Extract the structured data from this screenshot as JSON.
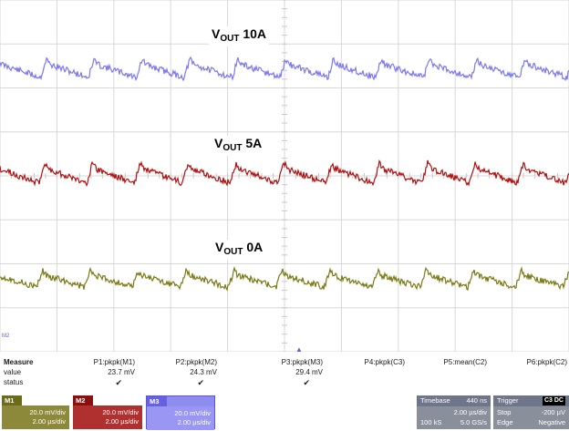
{
  "traces": {
    "top": {
      "label_main": "V",
      "label_sub": "OUT",
      "label_tail": " 10A",
      "color": "#7b78f0"
    },
    "middle": {
      "label_main": "V",
      "label_sub": "OUT",
      "label_tail": " 5A",
      "color": "#b01010"
    },
    "bottom": {
      "label_main": "V",
      "label_sub": "OUT",
      "label_tail": " 0A",
      "color": "#7a7a14"
    }
  },
  "markers": {
    "m2": "M2",
    "trigger": "▲"
  },
  "measure": {
    "title": "Measure",
    "row_value": "value",
    "row_status": "status",
    "params": [
      {
        "name": "P1:pkpk(M1)",
        "value": "23.7 mV",
        "status": "✔"
      },
      {
        "name": "P2:pkpk(M2)",
        "value": "24.3 mV",
        "status": "✔"
      },
      {
        "name": "P3:pkpk(M3)",
        "value": "29.4 mV",
        "status": "✔"
      },
      {
        "name": "P4:pkpk(C3)",
        "value": "",
        "status": ""
      },
      {
        "name": "P5:mean(C2)",
        "value": "",
        "status": ""
      },
      {
        "name": "P6:pkpk(C2)",
        "value": "",
        "status": ""
      }
    ]
  },
  "channels": [
    {
      "tag": "M1",
      "vdiv": "20.0 mV/div",
      "tdiv": "2.00 µs/div"
    },
    {
      "tag": "M2",
      "vdiv": "20.0 mV/div",
      "tdiv": "2.00 µs/div"
    },
    {
      "tag": "M3",
      "vdiv": "20.0 mV/div",
      "tdiv": "2.00 µs/div"
    }
  ],
  "timebase": {
    "title": "Timebase",
    "delay": "440 ns",
    "tdiv": "2.00 µs/div",
    "samples": "100 kS",
    "rate": "5.0 GS/s"
  },
  "trigger": {
    "title": "Trigger",
    "channels": "C3 DC",
    "mode": "Stop",
    "level": "-200 µV",
    "type": "Edge",
    "slope": "Negative"
  }
}
